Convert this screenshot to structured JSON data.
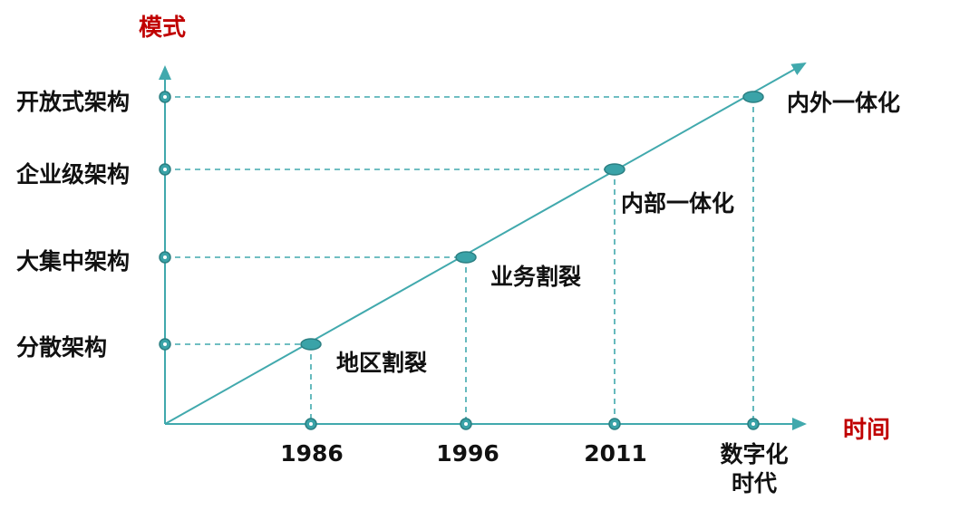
{
  "axes": {
    "y_title": "模式",
    "x_title": "时间"
  },
  "y_levels": [
    "分散架构",
    "大集中架构",
    "企业级架构",
    "开放式架构"
  ],
  "x_ticks": [
    "1986",
    "1996",
    "2011",
    "数字化时代"
  ],
  "x_tick_lines": [
    [
      "1986"
    ],
    [
      "1996"
    ],
    [
      "2011"
    ],
    [
      "数字化",
      "时代"
    ]
  ],
  "stages": [
    {
      "label": "地区割裂",
      "x": "1986",
      "y": "分散架构"
    },
    {
      "label": "业务割裂",
      "x": "1996",
      "y": "大集中架构"
    },
    {
      "label": "内部一体化",
      "x": "2011",
      "y": "企业级架构"
    },
    {
      "label": "内外一体化",
      "x": "数字化时代",
      "y": "开放式架构"
    }
  ],
  "colors": {
    "line": "#41a9ad",
    "marker_fill": "#3aa3a8",
    "marker_dark": "#2b7f82",
    "axis_title": "#c00000",
    "text": "#111111"
  }
}
